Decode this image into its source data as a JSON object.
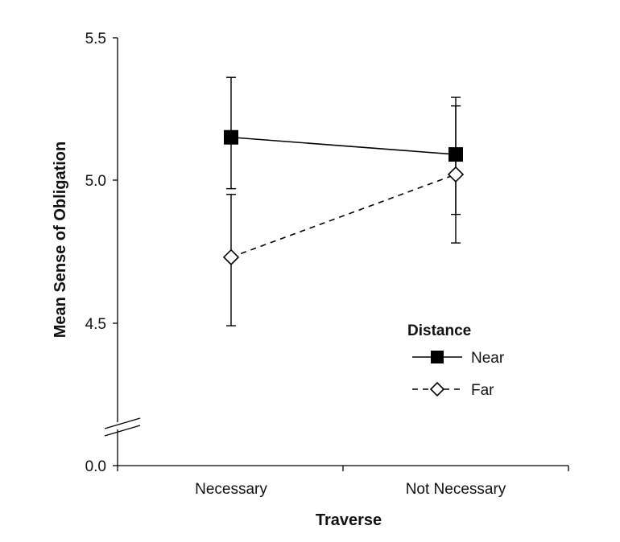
{
  "chart_data": {
    "type": "line",
    "title": "",
    "xlabel": "Traverse",
    "ylabel": "Mean Sense of Obligation",
    "categories": [
      "Necessary",
      "Not Necessary"
    ],
    "yticks": [
      "0.0",
      "4.5",
      "5.0",
      "5.5"
    ],
    "axis_break": true,
    "ylim": [
      4.0,
      5.5
    ],
    "legend": {
      "title": "Distance",
      "position": "bottom-right"
    },
    "series": [
      {
        "name": "Near",
        "style": "solid",
        "marker": "filled-square",
        "values": [
          5.15,
          5.09
        ],
        "error_upper": [
          5.36,
          5.29
        ],
        "error_lower": [
          4.97,
          4.88
        ]
      },
      {
        "name": "Far",
        "style": "dashed",
        "marker": "open-diamond",
        "values": [
          4.73,
          5.02
        ],
        "error_upper": [
          4.95,
          5.26
        ],
        "error_lower": [
          4.49,
          4.78
        ]
      }
    ],
    "colors": {
      "line": "#000000",
      "background": "#ffffff"
    }
  }
}
